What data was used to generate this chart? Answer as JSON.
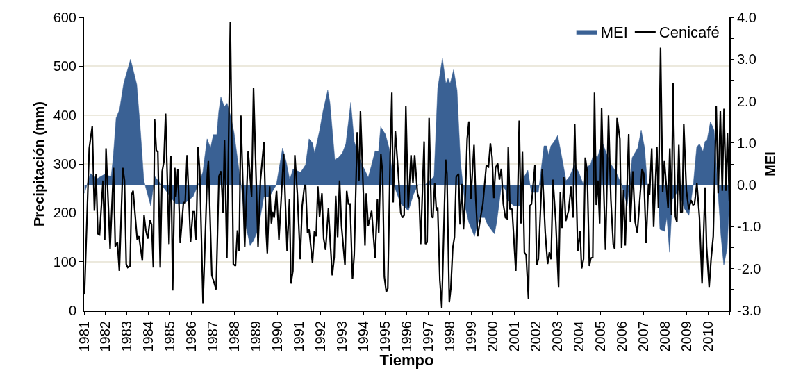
{
  "chart_data": {
    "type": "line",
    "xlabel": "Tiempo",
    "ylabel": "Precipitación (mm)",
    "y2label": "MEI",
    "xlim": [
      1981,
      2011
    ],
    "xticks": [
      1981,
      1982,
      1983,
      1984,
      1985,
      1986,
      1987,
      1988,
      1989,
      1990,
      1991,
      1992,
      1993,
      1994,
      1995,
      1996,
      1997,
      1998,
      1999,
      2000,
      2001,
      2002,
      2003,
      2004,
      2005,
      2006,
      2007,
      2008,
      2009,
      2010,
      {
        "value": 2011,
        "label": null
      }
    ],
    "ylim": [
      0,
      600
    ],
    "yticks": [
      0,
      100,
      200,
      300,
      400,
      500,
      600
    ],
    "y2lim": [
      -3,
      4
    ],
    "y2ticks": [
      {
        "value": 4,
        "label": "4.0"
      },
      {
        "value": 3.5,
        "label": null
      },
      {
        "value": 3,
        "label": "3.0"
      },
      {
        "value": 2.5,
        "label": null
      },
      {
        "value": 2,
        "label": "2.0"
      },
      {
        "value": 1.5,
        "label": null
      },
      {
        "value": 1,
        "label": "1.0"
      },
      {
        "value": 0.5,
        "label": null
      },
      {
        "value": 0,
        "label": "0.0"
      },
      {
        "value": -0.5,
        "label": null
      },
      {
        "value": -1,
        "label": "-1.0"
      },
      {
        "value": -1.5,
        "label": null
      },
      {
        "value": -2,
        "label": "-2.0"
      },
      {
        "value": -2.5,
        "label": null
      },
      {
        "value": -3,
        "label": "-3.0"
      }
    ],
    "grid": "y",
    "legend": "top right",
    "marker": "none",
    "series": [
      {
        "name": "MEI",
        "type": "area",
        "axis": "y2",
        "color": "#3a6194",
        "x": [
          1981.02,
          1981.29,
          1981.61,
          1981.94,
          1982.26,
          1982.36,
          1982.49,
          1982.65,
          1982.84,
          1983.16,
          1983.45,
          1983.62,
          1983.78,
          1984.1,
          1984.29,
          1984.75,
          1985.26,
          1985.65,
          1986.07,
          1986.3,
          1986.52,
          1986.72,
          1986.88,
          1987.01,
          1987.17,
          1987.26,
          1987.36,
          1987.52,
          1987.65,
          1987.81,
          1987.97,
          1988.14,
          1988.3,
          1988.49,
          1988.72,
          1988.88,
          1989.1,
          1989.36,
          1989.62,
          1989.94,
          1990.23,
          1990.4,
          1990.56,
          1990.72,
          1991.07,
          1991.3,
          1991.46,
          1991.62,
          1991.72,
          1991.95,
          1992.11,
          1992.33,
          1992.43,
          1992.66,
          1992.82,
          1993.01,
          1993.17,
          1993.4,
          1993.56,
          1993.79,
          1993.98,
          1994.21,
          1994.37,
          1994.53,
          1994.69,
          1994.79,
          1995.01,
          1995.18,
          1995.4,
          1995.72,
          1996.08,
          1996.31,
          1996.53,
          1996.85,
          1997.27,
          1997.44,
          1997.66,
          1997.82,
          1997.92,
          1998.02,
          1998.18,
          1998.34,
          1998.5,
          1998.73,
          1998.89,
          1999.15,
          1999.37,
          1999.63,
          1999.76,
          2000.08,
          2000.18,
          2000.41,
          2000.6,
          2000.66,
          2000.98,
          2001.24,
          2001.47,
          2001.63,
          2001.79,
          2002.12,
          2002.38,
          2002.5,
          2002.6,
          2002.7,
          2002.86,
          2003.02,
          2003.25,
          2003.41,
          2003.57,
          2003.8,
          2003.99,
          2004.22,
          2004.38,
          2004.54,
          2004.7,
          2004.86,
          2004.96,
          2005.12,
          2005.28,
          2005.51,
          2005.73,
          2005.99,
          2006.25,
          2006.48,
          2006.74,
          2006.9,
          2007.06,
          2007.19,
          2007.67,
          2007.77,
          2007.99,
          2008.09,
          2008.22,
          2008.35,
          2008.64,
          2008.9,
          2009.12,
          2009.32,
          2009.48,
          2009.61,
          2009.77,
          2009.87,
          2009.96,
          2010.12,
          2010.29,
          2010.45,
          2010.61,
          2010.74,
          2010.9,
          2011
        ],
        "values": [
          -0.2,
          0.27,
          0.15,
          0.25,
          0.2,
          0.7,
          1.6,
          1.8,
          2.42,
          3.0,
          2.4,
          1.3,
          0.1,
          -0.5,
          0.2,
          -0.1,
          -0.45,
          -0.45,
          -0.28,
          0,
          0.3,
          1.1,
          0.88,
          1.2,
          1.2,
          1.75,
          2.1,
          1.87,
          1.95,
          1.65,
          1.26,
          0.6,
          0,
          -0.9,
          -1.45,
          -1.33,
          -1.06,
          -0.28,
          -0.28,
          0,
          0.88,
          0.55,
          0.13,
          0.38,
          0.3,
          0.48,
          1.1,
          1.0,
          0.76,
          1.3,
          1.76,
          2.26,
          1.97,
          0.6,
          0.65,
          0.76,
          0.98,
          1.97,
          1.04,
          0.65,
          0.43,
          0.18,
          0.48,
          0.81,
          0.8,
          1.39,
          1.21,
          0.88,
          0,
          -0.45,
          -0.62,
          -0.23,
          0,
          0,
          0.2,
          2.3,
          3.03,
          2.42,
          2.54,
          2.42,
          2.75,
          2.26,
          0.55,
          -0.56,
          -0.9,
          -1.23,
          -0.78,
          -0.78,
          -0.95,
          -1.17,
          -0.9,
          0,
          -0.12,
          -0.35,
          -0.5,
          -0.5,
          0.2,
          0.35,
          -0.18,
          -0.18,
          0.93,
          0.93,
          0.71,
          0.93,
          1.04,
          1.18,
          0.55,
          0.1,
          0.2,
          0.48,
          0.31,
          0,
          0.43,
          0.48,
          0.76,
          0.65,
          0.81,
          0.98,
          0.76,
          0.48,
          0.31,
          0,
          -0.5,
          0.65,
          0.88,
          1.31,
          0.88,
          0,
          0,
          -1.06,
          -1.11,
          -0.78,
          -1.61,
          -0.35,
          -0.12,
          -0.56,
          -0.73,
          0,
          0.9,
          0.98,
          0.8,
          1.04,
          1.06,
          1.51,
          1.31,
          0,
          -1.23,
          -1.92,
          -1.51,
          -0.35
        ]
      },
      {
        "name": "Cenicafé",
        "type": "line",
        "color": "#000000",
        "x": [
          1981.02,
          1981.24,
          1981.38,
          1981.48,
          1981.56,
          1981.64,
          1981.72,
          1981.88,
          1981.96,
          1982.02,
          1982.21,
          1982.37,
          1982.45,
          1982.55,
          1982.64,
          1982.8,
          1982.88,
          1982.96,
          1983.03,
          1983.14,
          1983.21,
          1983.28,
          1983.47,
          1983.55,
          1983.71,
          1983.79,
          1983.87,
          1983.96,
          1984.06,
          1984.14,
          1984.22,
          1984.28,
          1984.36,
          1984.43,
          1984.54,
          1984.63,
          1984.71,
          1984.79,
          1984.95,
          1985.04,
          1985.12,
          1985.22,
          1985.27,
          1985.36,
          1985.47,
          1985.62,
          1985.7,
          1985.79,
          1985.95,
          1986.06,
          1986.13,
          1986.21,
          1986.3,
          1986.38,
          1986.53,
          1986.73,
          1986.78,
          1986.94,
          1987.14,
          1987.27,
          1987.37,
          1987.46,
          1987.53,
          1987.64,
          1987.8,
          1987.94,
          1988.04,
          1988.13,
          1988.21,
          1988.29,
          1988.47,
          1988.63,
          1988.79,
          1988.88,
          1989.09,
          1989.2,
          1989.36,
          1989.47,
          1989.52,
          1989.63,
          1989.71,
          1989.77,
          1989.84,
          1989.95,
          1990.06,
          1990.28,
          1990.44,
          1990.55,
          1990.62,
          1990.71,
          1990.8,
          1990.92,
          1991.05,
          1991.14,
          1991.25,
          1991.3,
          1991.39,
          1991.46,
          1991.62,
          1991.71,
          1991.79,
          1991.87,
          1991.95,
          1992.06,
          1992.14,
          1992.23,
          1992.36,
          1992.43,
          1992.54,
          1992.63,
          1992.7,
          1992.79,
          1992.88,
          1992.97,
          1993.13,
          1993.21,
          1993.29,
          1993.37,
          1993.48,
          1993.56,
          1993.7,
          1993.78,
          1993.85,
          1993.99,
          1994.06,
          1994.12,
          1994.21,
          1994.37,
          1994.53,
          1994.64,
          1994.7,
          1994.8,
          1994.88,
          1994.96,
          1995.05,
          1995.12,
          1995.23,
          1995.31,
          1995.37,
          1995.47,
          1995.61,
          1995.72,
          1995.8,
          1995.88,
          1995.96,
          1996.07,
          1996.2,
          1996.29,
          1996.37,
          1996.5,
          1996.58,
          1996.65,
          1996.74,
          1996.81,
          1996.87,
          1996.95,
          1997.04,
          1997.15,
          1997.22,
          1997.3,
          1997.38,
          1997.44,
          1997.54,
          1997.63,
          1997.81,
          1997.87,
          1997.98,
          1998.05,
          1998.14,
          1998.22,
          1998.3,
          1998.41,
          1998.48,
          1998.57,
          1998.64,
          1998.73,
          1998.81,
          1998.89,
          1998.98,
          1999.13,
          1999.21,
          1999.3,
          1999.43,
          1999.54,
          1999.7,
          1999.8,
          1999.89,
          1999.97,
          2000.05,
          2000.13,
          2000.23,
          2000.31,
          2000.4,
          2000.49,
          2000.59,
          2000.67,
          2000.72,
          2000.8,
          2000.83,
          2000.9,
          2001.07,
          2001.15,
          2001.23,
          2001.31,
          2001.38,
          2001.47,
          2001.55,
          2001.66,
          2001.72,
          2001.8,
          2001.96,
          2002.04,
          2002.12,
          2002.3,
          2002.44,
          2002.55,
          2002.63,
          2002.71,
          2002.8,
          2002.93,
          2003.06,
          2003.14,
          2003.22,
          2003.3,
          2003.39,
          2003.52,
          2003.64,
          2003.73,
          2003.81,
          2003.95,
          2004.06,
          2004.13,
          2004.22,
          2004.3,
          2004.39,
          2004.49,
          2004.56,
          2004.65,
          2004.73,
          2004.81,
          2004.89,
          2004.97,
          2005.06,
          2005.13,
          2005.24,
          2005.38,
          2005.49,
          2005.6,
          2005.67,
          2005.78,
          2005.91,
          2005.99,
          2006.08,
          2006.16,
          2006.32,
          2006.4,
          2006.51,
          2006.62,
          2006.72,
          2006.94,
          2007.02,
          2007.13,
          2007.24,
          2007.29,
          2007.39,
          2007.48,
          2007.63,
          2007.7,
          2007.8,
          2007.9,
          2007.98,
          2008.15,
          2008.23,
          2008.31,
          2008.38,
          2008.49,
          2008.56,
          2008.65,
          2008.74,
          2008.81,
          2008.88,
          2009.0,
          2009.11,
          2009.22,
          2009.31,
          2009.38,
          2009.49,
          2009.61,
          2009.73,
          2009.87,
          2009.94,
          2010.06,
          2010.15,
          2010.25,
          2010.39,
          2010.48,
          2010.58,
          2010.67,
          2010.75,
          2010.84,
          2010.91,
          2011.0
        ],
        "values": [
          34,
          332,
          377,
          204,
          280,
          157,
          155,
          266,
          145,
          332,
          126,
          292,
          131,
          140,
          81,
          292,
          266,
          95,
          88,
          91,
          237,
          245,
          145,
          152,
          102,
          195,
          164,
          147,
          185,
          176,
          88,
          391,
          327,
          325,
          88,
          285,
          304,
          403,
          136,
          316,
          41,
          292,
          233,
          290,
          138,
          221,
          221,
          318,
          140,
          202,
          202,
          144,
          335,
          285,
          15,
          280,
          306,
          72,
          43,
          275,
          285,
          200,
          349,
          107,
          591,
          95,
          91,
          164,
          121,
          399,
          131,
          327,
          233,
          455,
          131,
          266,
          344,
          157,
          117,
          254,
          178,
          202,
          190,
          245,
          145,
          320,
          121,
          228,
          55,
          81,
          318,
          237,
          105,
          214,
          256,
          256,
          159,
          166,
          98,
          162,
          152,
          254,
          192,
          240,
          147,
          124,
          209,
          152,
          72,
          109,
          235,
          150,
          266,
          173,
          93,
          245,
          218,
          218,
          64,
          114,
          365,
          266,
          408,
          233,
          133,
          240,
          173,
          204,
          107,
          228,
          159,
          320,
          280,
          69,
          38,
          45,
          313,
          446,
          221,
          368,
          280,
          200,
          190,
          195,
          418,
          211,
          318,
          261,
          318,
          240,
          228,
          136,
          256,
          346,
          136,
          140,
          394,
          192,
          190,
          261,
          204,
          211,
          62,
          5,
          309,
          280,
          17,
          45,
          128,
          150,
          273,
          280,
          176,
          259,
          166,
          242,
          351,
          387,
          228,
          339,
          228,
          152,
          190,
          218,
          297,
          294,
          342,
          313,
          230,
          292,
          301,
          268,
          290,
          218,
          190,
          188,
          335,
          207,
          209,
          207,
          81,
          209,
          389,
          178,
          325,
          119,
          114,
          24,
          214,
          218,
          297,
          93,
          105,
          290,
          159,
          95,
          119,
          105,
          268,
          181,
          48,
          242,
          169,
          273,
          183,
          204,
          254,
          190,
          382,
          121,
          162,
          86,
          105,
          313,
          285,
          91,
          107,
          109,
          446,
          216,
          266,
          178,
          415,
          294,
          124,
          399,
          228,
          136,
          126,
          394,
          351,
          128,
          247,
          133,
          361,
          181,
          285,
          181,
          159,
          290,
          280,
          138,
          259,
          237,
          332,
          171,
          335,
          209,
          538,
          242,
          306,
          209,
          332,
          195,
          465,
          192,
          181,
          339,
          200,
          202,
          382,
          247,
          207,
          226,
          216,
          218,
          261,
          190,
          55,
          252,
          131,
          48,
          105,
          152,
          418,
          240,
          408,
          245,
          413,
          245,
          363,
          223
        ]
      }
    ]
  }
}
